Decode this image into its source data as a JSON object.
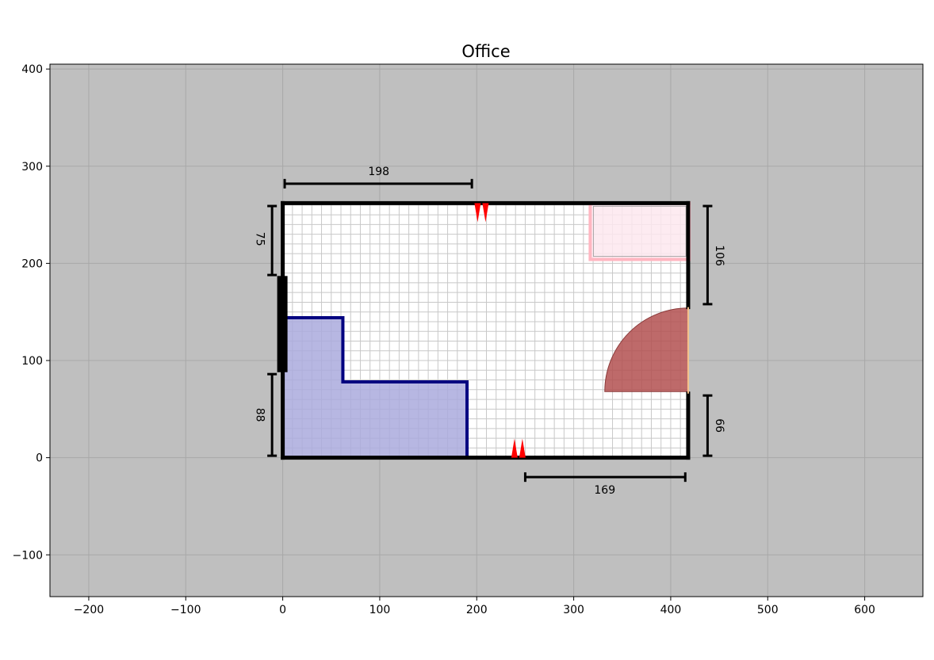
{
  "title": "Office",
  "axes": {
    "xlim": [
      -240,
      660
    ],
    "ylim": [
      -143,
      405
    ],
    "xticks": [
      -200,
      -100,
      0,
      100,
      200,
      300,
      400,
      500,
      600
    ],
    "yticks": [
      -100,
      0,
      100,
      200,
      300,
      400
    ],
    "xtick_labels": [
      "−200",
      "−100",
      "0",
      "100",
      "200",
      "300",
      "400",
      "500",
      "600"
    ],
    "ytick_labels": [
      "−100",
      "0",
      "100",
      "200",
      "300",
      "400"
    ],
    "background": "#bfbfbf",
    "grid": true
  },
  "room": {
    "width": 418,
    "height": 262,
    "floor_color": "#ffffff",
    "floor_grid_step": 10,
    "wall_color": "#000000",
    "openings": [
      {
        "wall": "right",
        "from": 66,
        "to": 155
      }
    ],
    "window": {
      "wall": "left",
      "from": 88,
      "to": 187,
      "color": "#000000"
    }
  },
  "objects": [
    {
      "name": "desk-l-shape",
      "color_fill": "#aaaadd",
      "color_edge": "#000080",
      "polygon": [
        [
          0,
          0
        ],
        [
          190,
          0
        ],
        [
          190,
          78
        ],
        [
          62,
          78
        ],
        [
          62,
          144
        ],
        [
          0,
          144
        ]
      ]
    },
    {
      "name": "cabinet",
      "color_fill": "#fde8ee",
      "color_edge": "#ffb6c1",
      "rect": {
        "x": 317,
        "y": 204,
        "w": 102,
        "h": 58
      }
    }
  ],
  "door": {
    "hinge": [
      418,
      68
    ],
    "radius": 86,
    "start_deg": 90,
    "end_deg": 180,
    "color": "#b35050"
  },
  "markers": [
    {
      "x": 205,
      "y": 262,
      "direction": "down",
      "color": "#ff0000"
    },
    {
      "x": 243,
      "y": 0,
      "direction": "up",
      "color": "#ff0000"
    }
  ],
  "dimensions": [
    {
      "label": "198",
      "orient": "h",
      "x1": 2,
      "x2": 195,
      "y": 282,
      "text_pos": [
        99,
        295
      ]
    },
    {
      "label": "169",
      "orient": "h",
      "x1": 250,
      "x2": 415,
      "y": -20,
      "text_pos": [
        332,
        -33
      ]
    },
    {
      "label": "75",
      "orient": "v",
      "y1": 188,
      "y2": 259,
      "x": -11,
      "text_pos": [
        -24,
        225
      ],
      "rot": 90
    },
    {
      "label": "88",
      "orient": "v",
      "y1": 2,
      "y2": 86,
      "x": -11,
      "text_pos": [
        -24,
        44
      ],
      "rot": 90
    },
    {
      "label": "106",
      "orient": "v",
      "y1": 158,
      "y2": 259,
      "x": 438,
      "text_pos": [
        450,
        208
      ],
      "rot": 90
    },
    {
      "label": "66",
      "orient": "v",
      "y1": 2,
      "y2": 64,
      "x": 438,
      "text_pos": [
        450,
        33
      ],
      "rot": 90
    }
  ]
}
